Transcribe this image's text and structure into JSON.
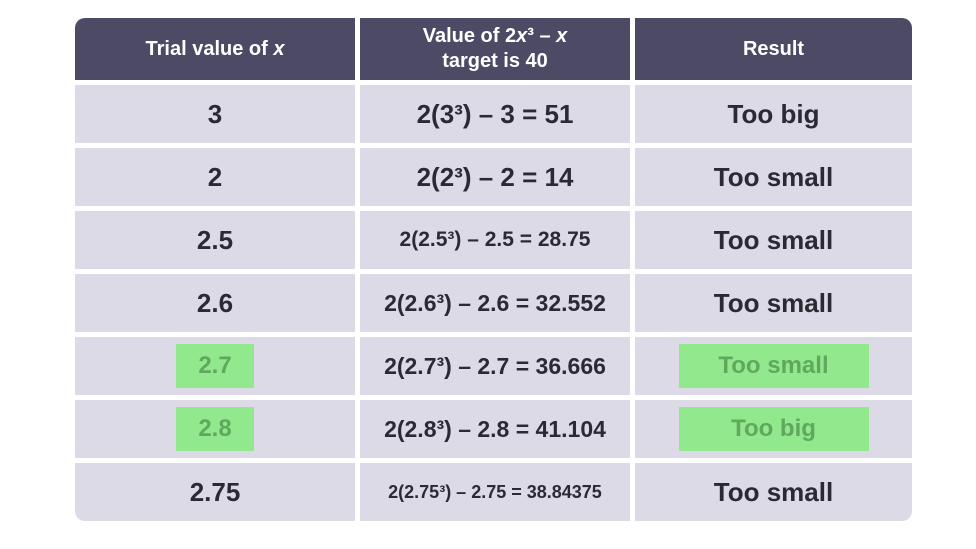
{
  "colors": {
    "page_background": "#ffffff",
    "header_background": "#4d4a66",
    "header_text": "#ffffff",
    "cell_background": "#dcdae6",
    "cell_text": "#2b2a33",
    "highlight_background": "#92e88c",
    "highlight_text": "#60a85e"
  },
  "table": {
    "headers": {
      "col1": {
        "prefix": "Trial value of ",
        "variable": "x"
      },
      "col2": {
        "line1_prefix": "Value of 2",
        "variable1": "x",
        "line1_mid": "³ – ",
        "variable2": "x",
        "line2": "target is 40"
      },
      "col3": "Result"
    },
    "rows": [
      {
        "trial": "3",
        "value": "2(3³) – 3 = 51",
        "result": "Too big",
        "highlighted": false
      },
      {
        "trial": "2",
        "value": "2(2³) – 2 = 14",
        "result": "Too small",
        "highlighted": false
      },
      {
        "trial": "2.5",
        "value": "2(2.5³) – 2.5 = 28.75",
        "result": "Too small",
        "highlighted": false
      },
      {
        "trial": "2.6",
        "value": "2(2.6³) – 2.6 = 32.552",
        "result": "Too small",
        "highlighted": false
      },
      {
        "trial": "2.7",
        "value": "2(2.7³) – 2.7 = 36.666",
        "result": "Too small",
        "highlighted": true
      },
      {
        "trial": "2.8",
        "value": "2(2.8³) – 2.8 = 41.104",
        "result": "Too big",
        "highlighted": true
      },
      {
        "trial": "2.75",
        "value": "2(2.75³) – 2.75 = 38.84375",
        "result": "Too small",
        "highlighted": false
      }
    ]
  }
}
